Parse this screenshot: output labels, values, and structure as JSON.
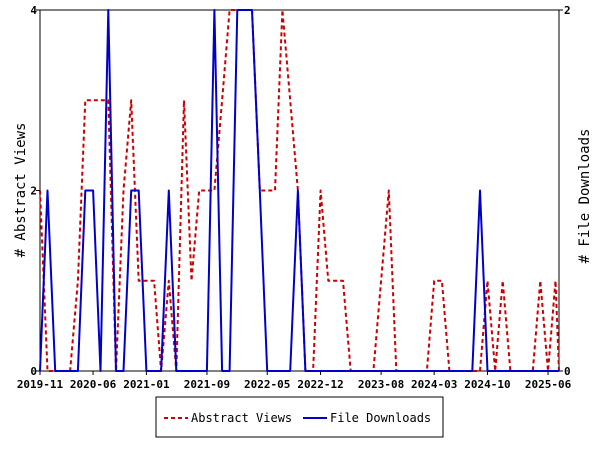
{
  "chart_data": {
    "type": "line",
    "ylabel_left": "# Abstract Views",
    "ylabel_right": "# File Downloads",
    "ylim_left": [
      0,
      4
    ],
    "ylim_right": [
      0,
      2
    ],
    "yticks_left": [
      "0",
      "2",
      "4"
    ],
    "yticks_right": [
      "0",
      "2"
    ],
    "xlim": [
      "2019-11-01",
      "2025-07-15"
    ],
    "xtick_labels": [
      "2019-11",
      "2020-06",
      "2021-01",
      "2021-09",
      "2022-05",
      "2022-12",
      "2023-08",
      "2024-03",
      "2024-10",
      "2025-06"
    ],
    "xtick_dates": [
      "2019-11-01",
      "2020-06-01",
      "2021-01-01",
      "2021-09-01",
      "2022-05-01",
      "2022-12-01",
      "2023-08-01",
      "2024-03-01",
      "2024-10-01",
      "2025-06-01"
    ],
    "legend_position": "bottom",
    "series": [
      {
        "name": "Abstract Views",
        "color": "#cc0000",
        "style": "dashed",
        "axis": "left",
        "points": [
          [
            "2019-11-01",
            2
          ],
          [
            "2019-12-01",
            0
          ],
          [
            "2020-01-01",
            0
          ],
          [
            "2020-02-01",
            0
          ],
          [
            "2020-03-01",
            0
          ],
          [
            "2020-04-01",
            1
          ],
          [
            "2020-05-01",
            3
          ],
          [
            "2020-06-01",
            3
          ],
          [
            "2020-07-01",
            3
          ],
          [
            "2020-08-01",
            3
          ],
          [
            "2020-09-01",
            0
          ],
          [
            "2020-10-01",
            2
          ],
          [
            "2020-11-01",
            3
          ],
          [
            "2020-12-01",
            1
          ],
          [
            "2021-01-01",
            1
          ],
          [
            "2021-02-01",
            1
          ],
          [
            "2021-03-01",
            0
          ],
          [
            "2021-04-01",
            1
          ],
          [
            "2021-05-01",
            0
          ],
          [
            "2021-06-01",
            3
          ],
          [
            "2021-07-01",
            1
          ],
          [
            "2021-08-01",
            2
          ],
          [
            "2021-09-01",
            2
          ],
          [
            "2021-10-01",
            2
          ],
          [
            "2021-11-01",
            3
          ],
          [
            "2021-12-01",
            4
          ],
          [
            "2022-01-01",
            4
          ],
          [
            "2022-02-01",
            4
          ],
          [
            "2022-03-01",
            4
          ],
          [
            "2022-04-01",
            2
          ],
          [
            "2022-05-01",
            2
          ],
          [
            "2022-06-01",
            2
          ],
          [
            "2022-07-01",
            4
          ],
          [
            "2022-08-01",
            3
          ],
          [
            "2022-09-01",
            2
          ],
          [
            "2022-10-01",
            0
          ],
          [
            "2022-11-01",
            0
          ],
          [
            "2022-12-01",
            2
          ],
          [
            "2023-01-01",
            1
          ],
          [
            "2023-02-01",
            1
          ],
          [
            "2023-03-01",
            1
          ],
          [
            "2023-04-01",
            0
          ],
          [
            "2023-05-01",
            0
          ],
          [
            "2023-06-01",
            0
          ],
          [
            "2023-07-01",
            0
          ],
          [
            "2023-08-01",
            1
          ],
          [
            "2023-09-01",
            2
          ],
          [
            "2023-10-01",
            0
          ],
          [
            "2023-11-01",
            0
          ],
          [
            "2023-12-01",
            0
          ],
          [
            "2024-01-01",
            0
          ],
          [
            "2024-02-01",
            0
          ],
          [
            "2024-03-01",
            1
          ],
          [
            "2024-04-01",
            1
          ],
          [
            "2024-05-01",
            0
          ],
          [
            "2024-06-01",
            0
          ],
          [
            "2024-07-01",
            0
          ],
          [
            "2024-08-01",
            0
          ],
          [
            "2024-09-01",
            0
          ],
          [
            "2024-10-01",
            1
          ],
          [
            "2024-11-01",
            0
          ],
          [
            "2024-12-01",
            1
          ],
          [
            "2025-01-01",
            0
          ],
          [
            "2025-02-01",
            0
          ],
          [
            "2025-03-01",
            0
          ],
          [
            "2025-04-01",
            0
          ],
          [
            "2025-05-01",
            1
          ],
          [
            "2025-06-01",
            0
          ],
          [
            "2025-07-01",
            1
          ],
          [
            "2025-07-15",
            0
          ]
        ]
      },
      {
        "name": "File Downloads",
        "color": "#0000cc",
        "style": "solid",
        "axis": "right",
        "points": [
          [
            "2019-11-01",
            0
          ],
          [
            "2019-12-01",
            1
          ],
          [
            "2020-01-01",
            0
          ],
          [
            "2020-02-01",
            0
          ],
          [
            "2020-03-01",
            0
          ],
          [
            "2020-04-01",
            0
          ],
          [
            "2020-05-01",
            1
          ],
          [
            "2020-06-01",
            1
          ],
          [
            "2020-07-01",
            0
          ],
          [
            "2020-08-01",
            2
          ],
          [
            "2020-09-01",
            0
          ],
          [
            "2020-10-01",
            0
          ],
          [
            "2020-11-01",
            1
          ],
          [
            "2020-12-01",
            1
          ],
          [
            "2021-01-01",
            0
          ],
          [
            "2021-02-01",
            0
          ],
          [
            "2021-03-01",
            0
          ],
          [
            "2021-04-01",
            1
          ],
          [
            "2021-05-01",
            0
          ],
          [
            "2021-06-01",
            0
          ],
          [
            "2021-07-01",
            0
          ],
          [
            "2021-08-01",
            0
          ],
          [
            "2021-09-01",
            0
          ],
          [
            "2021-10-01",
            2
          ],
          [
            "2021-11-01",
            0
          ],
          [
            "2021-12-01",
            0
          ],
          [
            "2022-01-01",
            2
          ],
          [
            "2022-02-01",
            2
          ],
          [
            "2022-03-01",
            2
          ],
          [
            "2022-04-01",
            1
          ],
          [
            "2022-05-01",
            0
          ],
          [
            "2022-06-01",
            0
          ],
          [
            "2022-07-01",
            0
          ],
          [
            "2022-08-01",
            0
          ],
          [
            "2022-09-01",
            1
          ],
          [
            "2022-10-01",
            0
          ],
          [
            "2022-11-01",
            0
          ],
          [
            "2022-12-01",
            0
          ],
          [
            "2023-01-01",
            0
          ],
          [
            "2023-02-01",
            0
          ],
          [
            "2023-03-01",
            0
          ],
          [
            "2023-04-01",
            0
          ],
          [
            "2023-05-01",
            0
          ],
          [
            "2023-06-01",
            0
          ],
          [
            "2023-07-01",
            0
          ],
          [
            "2023-08-01",
            0
          ],
          [
            "2023-09-01",
            0
          ],
          [
            "2023-10-01",
            0
          ],
          [
            "2023-11-01",
            0
          ],
          [
            "2023-12-01",
            0
          ],
          [
            "2024-01-01",
            0
          ],
          [
            "2024-02-01",
            0
          ],
          [
            "2024-03-01",
            0
          ],
          [
            "2024-04-01",
            0
          ],
          [
            "2024-05-01",
            0
          ],
          [
            "2024-06-01",
            0
          ],
          [
            "2024-07-01",
            0
          ],
          [
            "2024-08-01",
            0
          ],
          [
            "2024-09-01",
            1
          ],
          [
            "2024-10-01",
            0
          ],
          [
            "2024-11-01",
            0
          ],
          [
            "2024-12-01",
            0
          ],
          [
            "2025-01-01",
            0
          ],
          [
            "2025-02-01",
            0
          ],
          [
            "2025-03-01",
            0
          ],
          [
            "2025-04-01",
            0
          ],
          [
            "2025-05-01",
            0
          ],
          [
            "2025-06-01",
            0
          ],
          [
            "2025-07-01",
            0
          ],
          [
            "2025-07-15",
            0
          ]
        ]
      }
    ]
  }
}
